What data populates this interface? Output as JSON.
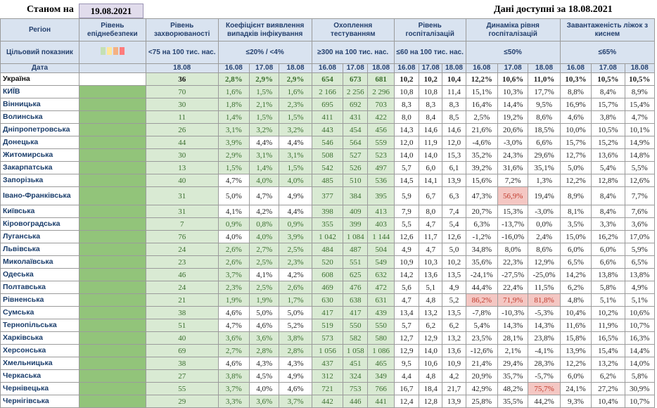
{
  "top": {
    "asof_label": "Станом на",
    "asof_date": "19.08.2021",
    "available": "Дані доступні за 18.08.2021"
  },
  "headers": {
    "region": "Регіон",
    "level": "Рівень епіднебезпеки",
    "incidence": "Рівень захворюваності",
    "coef": "Коефіцієнт виявлення випадків інфікування",
    "testing": "Охоплення тестуванням",
    "hosp": "Рівень госпіталізацій",
    "dyn": "Динаміка рівня госпіталізацій",
    "o2": "Завантаженість ліжок з киснем"
  },
  "targets": {
    "label": "Цільовий показник",
    "incidence": "<75 на 100 тис. нас.",
    "coef": "≤20% / <4%",
    "testing": "≥300 на 100 тис. нас.",
    "hosp": "≤60 на 100 тис. нас.",
    "dyn": "≤50%",
    "o2": "≤65%"
  },
  "swatch_colors": [
    "#c5e0b4",
    "#ffe699",
    "#f4b183",
    "#ff7c7c"
  ],
  "date_row": {
    "label": "Дата",
    "incidence": "18.08",
    "d1": "16.08",
    "d2": "17.08",
    "d3": "18.08"
  },
  "regions": [
    {
      "name": "Україна",
      "inc": "36",
      "coef": [
        "2,8%",
        "2,9%",
        "2,9%"
      ],
      "test": [
        "654",
        "673",
        "681"
      ],
      "hosp": [
        "10,2",
        "10,2",
        "10,4"
      ],
      "dyn": [
        "12,2%",
        "10,6%",
        "11,0%"
      ],
      "o2": [
        "10,3%",
        "10,5%",
        "10,5%"
      ]
    },
    {
      "name": "КИЇВ",
      "inc": "70",
      "coef": [
        "1,6%",
        "1,5%",
        "1,6%"
      ],
      "test": [
        "2 166",
        "2 256",
        "2 296"
      ],
      "hosp": [
        "10,8",
        "10,8",
        "11,4"
      ],
      "dyn": [
        "15,1%",
        "10,3%",
        "17,7%"
      ],
      "o2": [
        "8,8%",
        "8,4%",
        "8,9%"
      ]
    },
    {
      "name": "Вінницька",
      "inc": "30",
      "coef": [
        "1,8%",
        "2,1%",
        "2,3%"
      ],
      "test": [
        "695",
        "692",
        "703"
      ],
      "hosp": [
        "8,3",
        "8,3",
        "8,3"
      ],
      "dyn": [
        "16,4%",
        "14,4%",
        "9,5%"
      ],
      "o2": [
        "16,9%",
        "15,7%",
        "15,4%"
      ]
    },
    {
      "name": "Волинська",
      "inc": "11",
      "coef": [
        "1,4%",
        "1,5%",
        "1,5%"
      ],
      "test": [
        "411",
        "431",
        "422"
      ],
      "hosp": [
        "8,0",
        "8,4",
        "8,5"
      ],
      "dyn": [
        "2,5%",
        "19,2%",
        "8,6%"
      ],
      "o2": [
        "4,6%",
        "3,8%",
        "4,7%"
      ]
    },
    {
      "name": "Дніпропетровська",
      "inc": "26",
      "coef": [
        "3,1%",
        "3,2%",
        "3,2%"
      ],
      "test": [
        "443",
        "454",
        "456"
      ],
      "hosp": [
        "14,3",
        "14,6",
        "14,6"
      ],
      "dyn": [
        "21,6%",
        "20,6%",
        "18,5%"
      ],
      "o2": [
        "10,0%",
        "10,5%",
        "10,1%"
      ]
    },
    {
      "name": "Донецька",
      "inc": "44",
      "coef": [
        "3,9%",
        "4,4%",
        "4,4%"
      ],
      "test": [
        "546",
        "564",
        "559"
      ],
      "hosp": [
        "12,0",
        "11,9",
        "12,0"
      ],
      "dyn": [
        "-4,6%",
        "-3,0%",
        "6,6%"
      ],
      "o2": [
        "15,7%",
        "15,2%",
        "14,9%"
      ]
    },
    {
      "name": "Житомирська",
      "inc": "30",
      "coef": [
        "2,9%",
        "3,1%",
        "3,1%"
      ],
      "test": [
        "508",
        "527",
        "523"
      ],
      "hosp": [
        "14,0",
        "14,0",
        "15,3"
      ],
      "dyn": [
        "35,2%",
        "24,3%",
        "29,6%"
      ],
      "o2": [
        "12,7%",
        "13,6%",
        "14,8%"
      ]
    },
    {
      "name": "Закарпатська",
      "inc": "13",
      "coef": [
        "1,5%",
        "1,4%",
        "1,5%"
      ],
      "test": [
        "542",
        "526",
        "497"
      ],
      "hosp": [
        "5,7",
        "6,0",
        "6,1"
      ],
      "dyn": [
        "39,2%",
        "31,6%",
        "35,1%"
      ],
      "o2": [
        "5,0%",
        "5,4%",
        "5,5%"
      ]
    },
    {
      "name": "Запорізька",
      "inc": "40",
      "coef": [
        "4,7%",
        "4,0%",
        "4,0%"
      ],
      "test": [
        "485",
        "510",
        "536"
      ],
      "hosp": [
        "14,5",
        "14,1",
        "13,9"
      ],
      "dyn": [
        "15,6%",
        "7,2%",
        "1,3%"
      ],
      "o2": [
        "12,2%",
        "12,8%",
        "12,6%"
      ]
    },
    {
      "name": "Івано-Франківська",
      "inc": "31",
      "coef": [
        "5,0%",
        "4,7%",
        "4,9%"
      ],
      "test": [
        "377",
        "384",
        "395"
      ],
      "hosp": [
        "5,9",
        "6,7",
        "6,3"
      ],
      "dyn": [
        "47,3%",
        "56,9%",
        "19,4%"
      ],
      "o2": [
        "8,9%",
        "8,4%",
        "7,7%"
      ]
    },
    {
      "name": "Київська",
      "inc": "31",
      "coef": [
        "4,1%",
        "4,2%",
        "4,4%"
      ],
      "test": [
        "398",
        "409",
        "413"
      ],
      "hosp": [
        "7,9",
        "8,0",
        "7,4"
      ],
      "dyn": [
        "20,7%",
        "15,3%",
        "-3,0%"
      ],
      "o2": [
        "8,1%",
        "8,4%",
        "7,6%"
      ]
    },
    {
      "name": "Кіровоградська",
      "inc": "7",
      "coef": [
        "0,9%",
        "0,8%",
        "0,9%"
      ],
      "test": [
        "355",
        "399",
        "403"
      ],
      "hosp": [
        "5,5",
        "4,7",
        "5,4"
      ],
      "dyn": [
        "6,3%",
        "-13,7%",
        "0,0%"
      ],
      "o2": [
        "3,5%",
        "3,3%",
        "3,6%"
      ]
    },
    {
      "name": "Луганська",
      "inc": "76",
      "coef": [
        "4,0%",
        "4,0%",
        "3,9%"
      ],
      "test": [
        "1 042",
        "1 084",
        "1 144"
      ],
      "hosp": [
        "12,6",
        "11,7",
        "12,6"
      ],
      "dyn": [
        "-1,2%",
        "-16,0%",
        "2,4%"
      ],
      "o2": [
        "15,0%",
        "16,2%",
        "17,0%"
      ]
    },
    {
      "name": "Львівська",
      "inc": "24",
      "coef": [
        "2,6%",
        "2,7%",
        "2,5%"
      ],
      "test": [
        "484",
        "487",
        "504"
      ],
      "hosp": [
        "4,9",
        "4,7",
        "5,0"
      ],
      "dyn": [
        "34,8%",
        "8,0%",
        "8,6%"
      ],
      "o2": [
        "6,0%",
        "6,0%",
        "5,9%"
      ]
    },
    {
      "name": "Миколаївська",
      "inc": "23",
      "coef": [
        "2,6%",
        "2,5%",
        "2,3%"
      ],
      "test": [
        "520",
        "551",
        "549"
      ],
      "hosp": [
        "10,9",
        "10,3",
        "10,2"
      ],
      "dyn": [
        "35,6%",
        "22,3%",
        "12,9%"
      ],
      "o2": [
        "6,5%",
        "6,6%",
        "6,5%"
      ]
    },
    {
      "name": "Одеська",
      "inc": "46",
      "coef": [
        "3,7%",
        "4,1%",
        "4,2%"
      ],
      "test": [
        "608",
        "625",
        "632"
      ],
      "hosp": [
        "14,2",
        "13,6",
        "13,5"
      ],
      "dyn": [
        "-24,1%",
        "-27,5%",
        "-25,0%"
      ],
      "o2": [
        "14,2%",
        "13,8%",
        "13,8%"
      ]
    },
    {
      "name": "Полтавська",
      "inc": "24",
      "coef": [
        "2,3%",
        "2,5%",
        "2,6%"
      ],
      "test": [
        "469",
        "476",
        "472"
      ],
      "hosp": [
        "5,6",
        "5,1",
        "4,9"
      ],
      "dyn": [
        "44,4%",
        "22,4%",
        "11,5%"
      ],
      "o2": [
        "6,2%",
        "5,8%",
        "4,9%"
      ]
    },
    {
      "name": "Рівненська",
      "inc": "21",
      "coef": [
        "1,9%",
        "1,9%",
        "1,7%"
      ],
      "test": [
        "630",
        "638",
        "631"
      ],
      "hosp": [
        "4,7",
        "4,8",
        "5,2"
      ],
      "dyn": [
        "86,2%",
        "71,9%",
        "81,8%"
      ],
      "o2": [
        "4,8%",
        "5,1%",
        "5,1%"
      ]
    },
    {
      "name": "Сумська",
      "inc": "38",
      "coef": [
        "4,6%",
        "5,0%",
        "5,0%"
      ],
      "test": [
        "417",
        "417",
        "439"
      ],
      "hosp": [
        "13,4",
        "13,2",
        "13,5"
      ],
      "dyn": [
        "-7,8%",
        "-10,3%",
        "-5,3%"
      ],
      "o2": [
        "10,4%",
        "10,2%",
        "10,6%"
      ]
    },
    {
      "name": "Тернопільська",
      "inc": "51",
      "coef": [
        "4,7%",
        "4,6%",
        "5,2%"
      ],
      "test": [
        "519",
        "550",
        "550"
      ],
      "hosp": [
        "5,7",
        "6,2",
        "6,2"
      ],
      "dyn": [
        "5,4%",
        "14,3%",
        "14,3%"
      ],
      "o2": [
        "11,6%",
        "11,9%",
        "10,7%"
      ]
    },
    {
      "name": "Харківська",
      "inc": "40",
      "coef": [
        "3,6%",
        "3,6%",
        "3,8%"
      ],
      "test": [
        "573",
        "582",
        "580"
      ],
      "hosp": [
        "12,7",
        "12,9",
        "13,2"
      ],
      "dyn": [
        "23,5%",
        "28,1%",
        "23,8%"
      ],
      "o2": [
        "15,8%",
        "16,5%",
        "16,3%"
      ]
    },
    {
      "name": "Херсонська",
      "inc": "69",
      "coef": [
        "2,7%",
        "2,8%",
        "2,8%"
      ],
      "test": [
        "1 056",
        "1 058",
        "1 086"
      ],
      "hosp": [
        "12,9",
        "14,0",
        "13,6"
      ],
      "dyn": [
        "-12,6%",
        "2,1%",
        "-4,1%"
      ],
      "o2": [
        "13,9%",
        "15,4%",
        "14,4%"
      ]
    },
    {
      "name": "Хмельницька",
      "inc": "38",
      "coef": [
        "4,6%",
        "4,3%",
        "4,3%"
      ],
      "test": [
        "437",
        "451",
        "465"
      ],
      "hosp": [
        "9,5",
        "10,6",
        "10,9"
      ],
      "dyn": [
        "21,4%",
        "29,4%",
        "28,3%"
      ],
      "o2": [
        "12,2%",
        "13,2%",
        "14,0%"
      ]
    },
    {
      "name": "Черкаська",
      "inc": "27",
      "coef": [
        "3,8%",
        "4,5%",
        "4,9%"
      ],
      "test": [
        "312",
        "324",
        "349"
      ],
      "hosp": [
        "4,4",
        "4,8",
        "4,2"
      ],
      "dyn": [
        "20,9%",
        "35,7%",
        "-5,7%"
      ],
      "o2": [
        "6,0%",
        "6,2%",
        "5,8%"
      ]
    },
    {
      "name": "Чернівецька",
      "inc": "55",
      "coef": [
        "3,7%",
        "4,0%",
        "4,6%"
      ],
      "test": [
        "721",
        "753",
        "766"
      ],
      "hosp": [
        "16,7",
        "18,4",
        "21,7"
      ],
      "dyn": [
        "42,9%",
        "48,2%",
        "75,7%"
      ],
      "o2": [
        "24,1%",
        "27,2%",
        "30,9%"
      ]
    },
    {
      "name": "Чернігівська",
      "inc": "29",
      "coef": [
        "3,3%",
        "3,6%",
        "3,7%"
      ],
      "test": [
        "442",
        "446",
        "441"
      ],
      "hosp": [
        "12,4",
        "12,8",
        "13,9"
      ],
      "dyn": [
        "25,8%",
        "35,5%",
        "44,2%"
      ],
      "o2": [
        "9,3%",
        "10,4%",
        "10,7%"
      ]
    }
  ]
}
